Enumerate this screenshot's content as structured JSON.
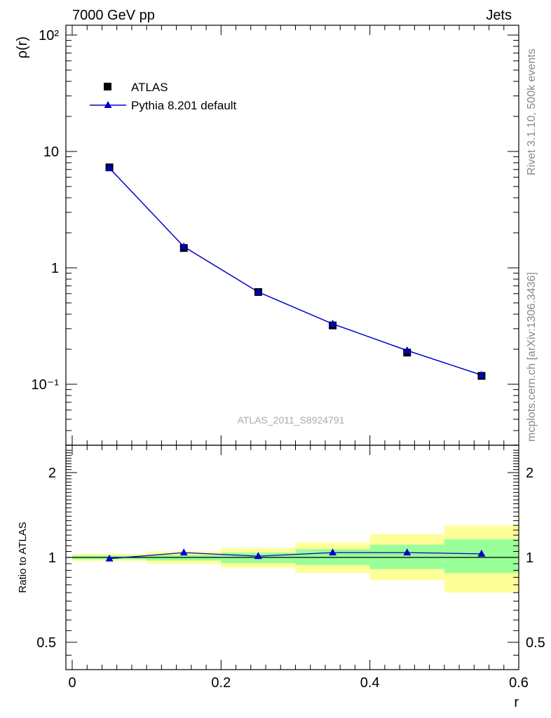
{
  "header": {
    "left": "7000 GeV pp",
    "right": "Jets"
  },
  "side_labels": {
    "top": "Rivet 3.1.10,  500k events",
    "bottom": "mcplots.cern.ch [arXiv:1306.3436]"
  },
  "watermark": "ATLAS_2011_S8924791",
  "chart_data": [
    {
      "type": "scatter",
      "ylabel": "ρ(r)",
      "xlabel": "r",
      "xlim": [
        0,
        0.6
      ],
      "ylim": [
        0.03,
        130
      ],
      "yscale": "log",
      "grid": false,
      "legend": "top-left",
      "y_tick_labels": [
        "10⁻¹",
        "1",
        "10",
        "10²"
      ],
      "x": [
        0.05,
        0.15,
        0.25,
        0.35,
        0.45,
        0.55
      ],
      "series": [
        {
          "name": "ATLAS",
          "marker": "square",
          "color": "#000000",
          "values": [
            7.3,
            1.48,
            0.62,
            0.32,
            0.187,
            0.118
          ]
        },
        {
          "name": "Pythia 8.201 default",
          "marker": "triangle",
          "color": "#0000cc",
          "values": [
            7.2,
            1.52,
            0.62,
            0.33,
            0.195,
            0.12
          ]
        }
      ]
    },
    {
      "type": "line",
      "ylabel": "Ratio to ATLAS",
      "xlabel": "r",
      "xlim": [
        0,
        0.6
      ],
      "ylim": [
        0.4,
        2.3
      ],
      "yscale": "log",
      "x_tick_labels": [
        "0",
        "0.2",
        "0.4",
        "0.6"
      ],
      "y_tick_labels": [
        "0.5",
        "1",
        "2"
      ],
      "bins": [
        [
          0.0,
          0.1
        ],
        [
          0.1,
          0.2
        ],
        [
          0.2,
          0.3
        ],
        [
          0.3,
          0.4
        ],
        [
          0.4,
          0.5
        ],
        [
          0.5,
          0.6
        ]
      ],
      "band_stat_low": [
        0.985,
        0.975,
        0.955,
        0.94,
        0.91,
        0.88
      ],
      "band_stat_high": [
        1.015,
        1.02,
        1.04,
        1.07,
        1.11,
        1.16
      ],
      "band_total_low": [
        0.97,
        0.95,
        0.92,
        0.88,
        0.83,
        0.75
      ],
      "band_total_high": [
        1.03,
        1.05,
        1.08,
        1.13,
        1.21,
        1.3
      ],
      "band_stat_color": "#99ff99",
      "band_total_color": "#ffff99",
      "series": [
        {
          "name": "Pythia 8.201 default",
          "color": "#0000cc",
          "x": [
            0.05,
            0.15,
            0.25,
            0.35,
            0.45,
            0.55
          ],
          "values": [
            0.99,
            1.04,
            1.01,
            1.04,
            1.04,
            1.03
          ]
        }
      ]
    }
  ]
}
